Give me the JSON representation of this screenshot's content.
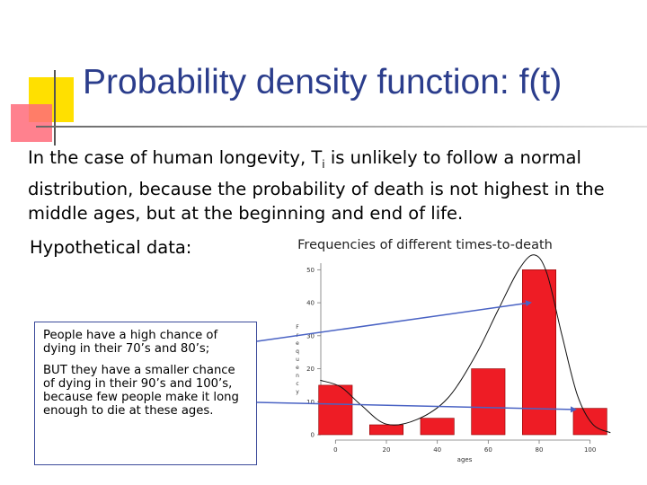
{
  "title": "Probability density function: f(t)",
  "intro": {
    "before_sub": "In the case of human longevity, T",
    "sub": "i",
    "after_sub": " is unlikely to follow a normal distribution, because the probability of death is not highest in the middle ages, but at the beginning and end of life."
  },
  "hypothetical_label": "Hypothetical data:",
  "callout": {
    "line1": "People have a high chance of dying in their 70’s and 80’s;",
    "line2": "BUT they have a smaller chance of dying in their 90’s and 100’s, because few people make it long enough to die at these ages."
  },
  "colors": {
    "title": "#2b3d8c",
    "bar": "#ee1c25",
    "arrow": "#4a63c4"
  },
  "chart_data": {
    "type": "bar",
    "title": "Frequencies of different times-to-death",
    "xlabel": "ages",
    "ylabel": "Frequency",
    "categories": [
      0,
      20,
      40,
      60,
      80,
      100
    ],
    "values": [
      15,
      3,
      5,
      20,
      50,
      8
    ],
    "xticks": [
      "0",
      "20",
      "40",
      "60",
      "80",
      "100"
    ],
    "yticks": [
      0,
      10,
      20,
      30,
      40,
      50
    ],
    "ylim": [
      0,
      52
    ],
    "xlim": [
      -10,
      110
    ],
    "grid": false,
    "density_curve": [
      [
        -6,
        16.5
      ],
      [
        2,
        14.5
      ],
      [
        10,
        9
      ],
      [
        20,
        3.2
      ],
      [
        32,
        4.6
      ],
      [
        44,
        11
      ],
      [
        55,
        24
      ],
      [
        64,
        38
      ],
      [
        72,
        50
      ],
      [
        78,
        54.5
      ],
      [
        83,
        49
      ],
      [
        89,
        30
      ],
      [
        95,
        12
      ],
      [
        101,
        3.2
      ],
      [
        108,
        0.6
      ]
    ]
  }
}
